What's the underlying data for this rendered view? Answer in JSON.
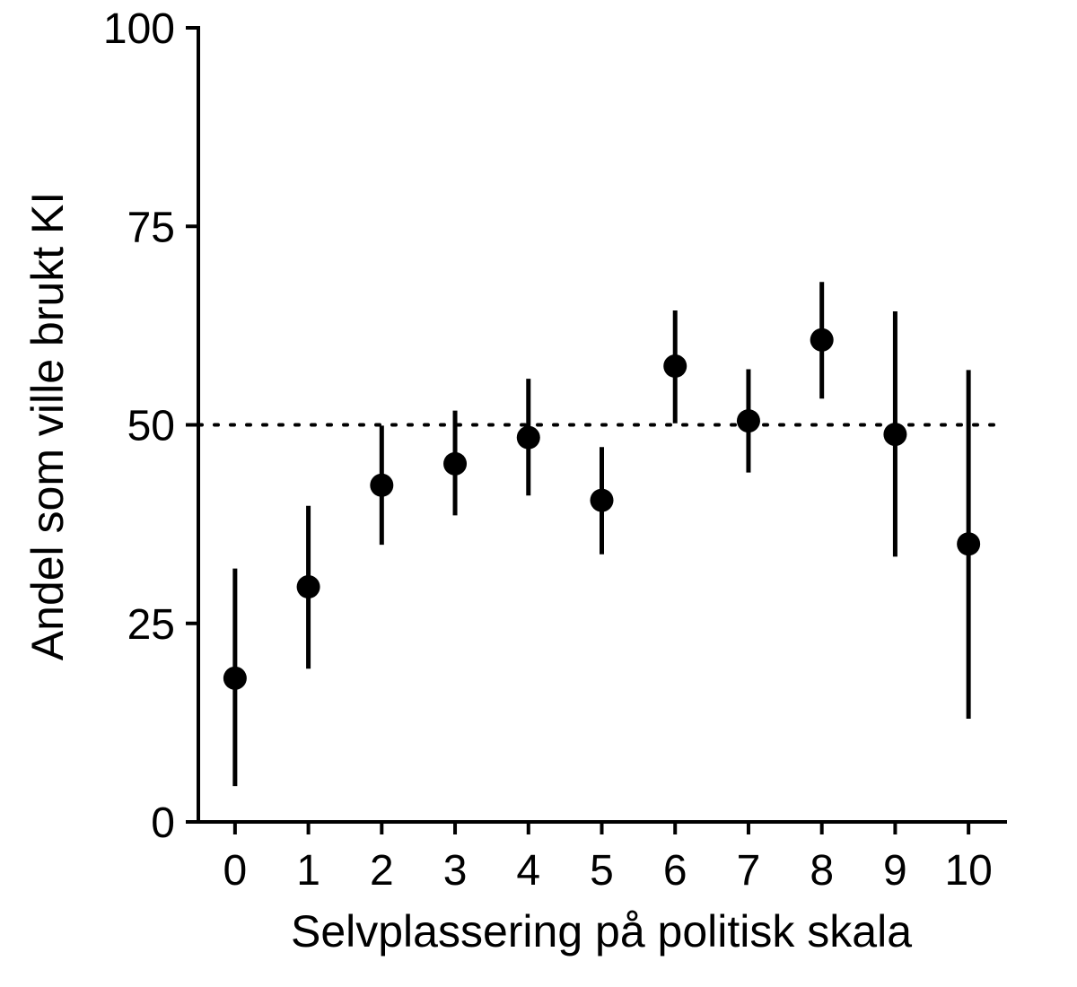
{
  "chart_data": {
    "type": "scatter",
    "title": "",
    "xlabel": "Selvplassering på politisk skala",
    "ylabel": "Andel som ville brukt KI",
    "xlim": [
      -0.5,
      10.5
    ],
    "ylim": [
      0,
      100
    ],
    "x_ticks": [
      0,
      1,
      2,
      3,
      4,
      5,
      6,
      7,
      8,
      9,
      10
    ],
    "y_ticks": [
      0,
      25,
      50,
      75,
      100
    ],
    "reference_line": {
      "y": 50,
      "style": "dotted"
    },
    "grid": false,
    "legend": "none",
    "colors": {
      "points": "#000000",
      "axes": "#000000"
    },
    "points": [
      {
        "x": 0,
        "y": 18.1,
        "lower": 4.5,
        "upper": 31.9
      },
      {
        "x": 1,
        "y": 29.6,
        "lower": 19.3,
        "upper": 39.8
      },
      {
        "x": 2,
        "y": 42.4,
        "lower": 34.9,
        "upper": 49.9
      },
      {
        "x": 3,
        "y": 45.1,
        "lower": 38.6,
        "upper": 51.8
      },
      {
        "x": 4,
        "y": 48.4,
        "lower": 41.1,
        "upper": 55.8
      },
      {
        "x": 5,
        "y": 40.5,
        "lower": 33.7,
        "upper": 47.2
      },
      {
        "x": 6,
        "y": 57.4,
        "lower": 50.2,
        "upper": 64.4
      },
      {
        "x": 7,
        "y": 50.5,
        "lower": 44.0,
        "upper": 57.0
      },
      {
        "x": 8,
        "y": 60.7,
        "lower": 53.3,
        "upper": 68.0
      },
      {
        "x": 9,
        "y": 48.8,
        "lower": 33.4,
        "upper": 64.3
      },
      {
        "x": 10,
        "y": 35.0,
        "lower": 13.0,
        "upper": 56.9
      }
    ]
  }
}
